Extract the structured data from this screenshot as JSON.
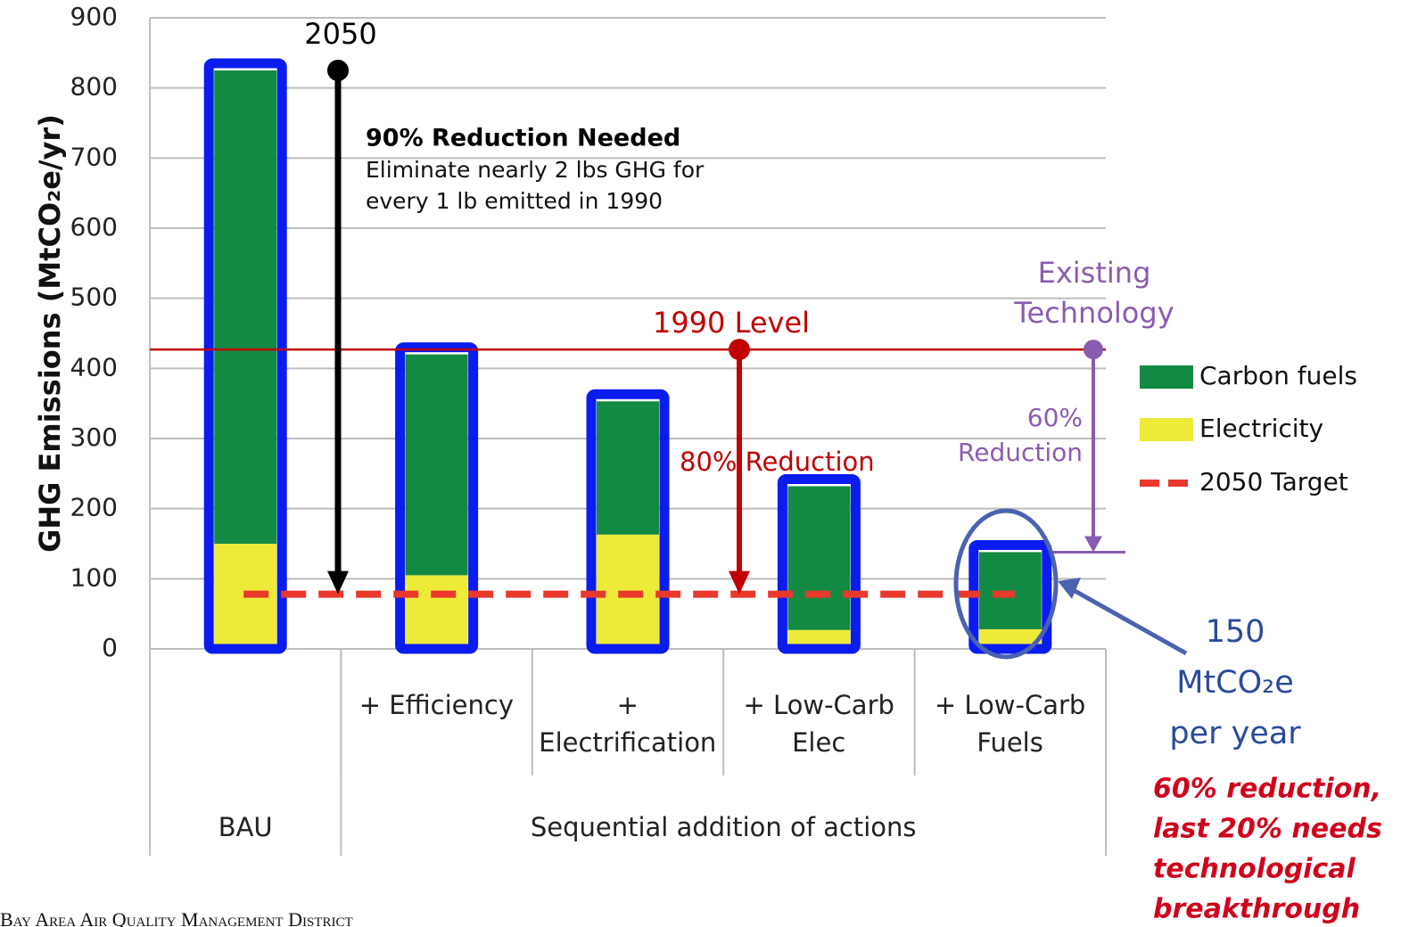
{
  "chart_data": {
    "type": "bar",
    "stacked": true,
    "y_label": "GHG Emissions (MtCO₂e/yr)",
    "categories": [
      null,
      "+ Efficiency",
      "+ Electrification",
      "+ Low-Carb Elec",
      "+ Low-Carb Fuels"
    ],
    "groups": [
      {
        "label": "BAU",
        "size": 1
      },
      {
        "label": "Sequential addition of actions",
        "size": 4
      }
    ],
    "series": [
      {
        "name": "Carbon fuels",
        "color": "#138a43",
        "values": [
          675,
          315,
          190,
          205,
          110
        ]
      },
      {
        "name": "Electricity",
        "color": "#eeea3a",
        "values": [
          150,
          105,
          163,
          27,
          28
        ]
      }
    ],
    "reference_lines": [
      {
        "name": "1990 Level",
        "value": 427,
        "color": "#c00000"
      },
      {
        "name": "2050 Target",
        "value": 78,
        "color": "#e8392c",
        "dashed": true
      }
    ],
    "ylim": [
      0,
      900
    ],
    "yticks": [
      0,
      100,
      200,
      300,
      400,
      500,
      600,
      700,
      800,
      900
    ],
    "grid": true,
    "legend": "right",
    "annotations": {
      "year": "2050",
      "need_title": "90% Reduction Needed",
      "need_text": [
        "Eliminate nearly 2 lbs GHG for",
        "every 1 lb emitted in 1990"
      ],
      "reduction_80": "80% Reduction",
      "existing": [
        "Existing",
        "Technology"
      ],
      "reduction_60": [
        "60%",
        "Reduction"
      ],
      "remaining": [
        "150",
        "MtCO₂e",
        "per year"
      ],
      "note": [
        "60% reduction,",
        "last 20% needs",
        "technological",
        "breakthrough"
      ]
    },
    "footer": "Bay Area Air Quality Management District"
  }
}
